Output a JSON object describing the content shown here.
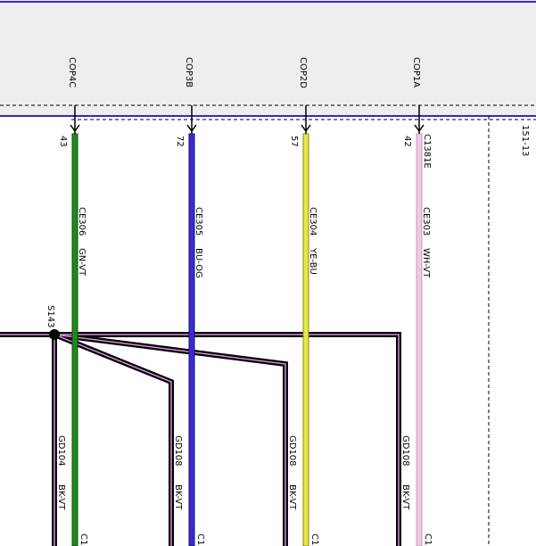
{
  "connector": {
    "label": "C1381E",
    "pins": [
      {
        "name": "COP4C",
        "number": "43",
        "circuit": "CE306",
        "color": "GN-VT"
      },
      {
        "name": "COP3B",
        "number": "72",
        "circuit": "CE305",
        "color": "BU-OG"
      },
      {
        "name": "COP2D",
        "number": "57",
        "circuit": "CE304",
        "color": "YE-BU"
      },
      {
        "name": "COP1A",
        "number": "42",
        "circuit": "CE303",
        "color": "WH-VT"
      }
    ]
  },
  "splice": "S143",
  "ground_wires": [
    {
      "circuit": "GD104",
      "color": "BK-VT",
      "connector": "C1"
    },
    {
      "circuit": "GD108",
      "color": "BK-VT",
      "connector": "C1"
    },
    {
      "circuit": "GD108",
      "color": "BK-VT",
      "connector": "C1"
    },
    {
      "circuit": "GD108",
      "color": "BK-VT",
      "connector": "C1"
    }
  ],
  "page_ref": "151-13"
}
